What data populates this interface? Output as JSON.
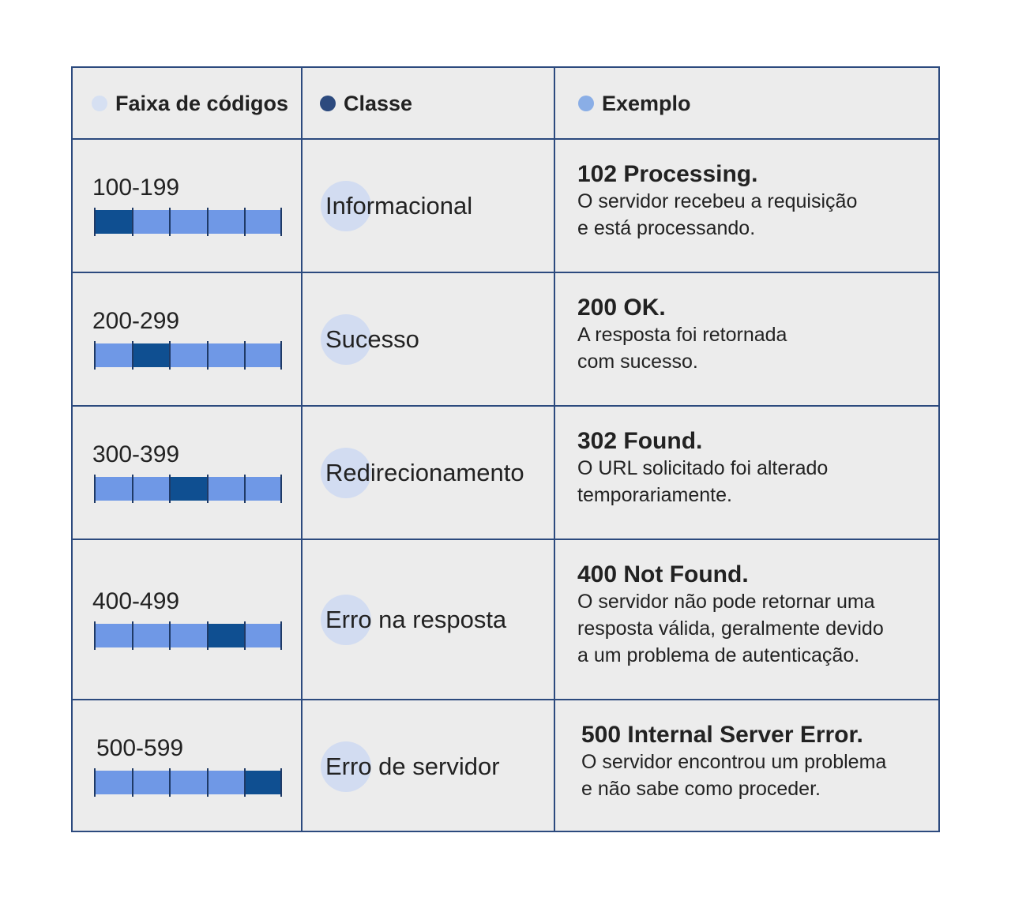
{
  "colors": {
    "border": "#2c4a7e",
    "cell_bg": "#ececec",
    "bar_light": "#6f98e6",
    "bar_dark": "#0f4f91",
    "bubble": "#d2dcf1"
  },
  "header": {
    "range": {
      "label": "Faixa de códigos",
      "dot_color": "#d6e0f2"
    },
    "class": {
      "label": "Classe",
      "dot_color": "#2c4a7e"
    },
    "example": {
      "label": "Exemplo",
      "dot_color": "#8aaee6"
    }
  },
  "rows": [
    {
      "range": "100-199",
      "active_segment": 1,
      "class": "Informacional",
      "example_title": "102 Processing.",
      "example_desc": "O servidor recebeu a requisição\ne está processando."
    },
    {
      "range": "200-299",
      "active_segment": 2,
      "class": "Sucesso",
      "example_title": "200 OK.",
      "example_desc": "A resposta foi retornada\ncom sucesso."
    },
    {
      "range": "300-399",
      "active_segment": 3,
      "class": "Redirecionamento",
      "example_title": "302 Found.",
      "example_desc": "O URL solicitado foi alterado\ntemporariamente."
    },
    {
      "range": "400-499",
      "active_segment": 4,
      "class": "Erro na resposta",
      "example_title": "400 Not Found.",
      "example_desc": "O servidor não pode retornar uma\nresposta válida, geralmente devido\na um problema de autenticação."
    },
    {
      "range": "500-599",
      "active_segment": 5,
      "class": "Erro de servidor",
      "example_title": "500 Internal Server Error.",
      "example_desc": "O servidor encontrou um problema\ne não sabe como proceder."
    }
  ]
}
